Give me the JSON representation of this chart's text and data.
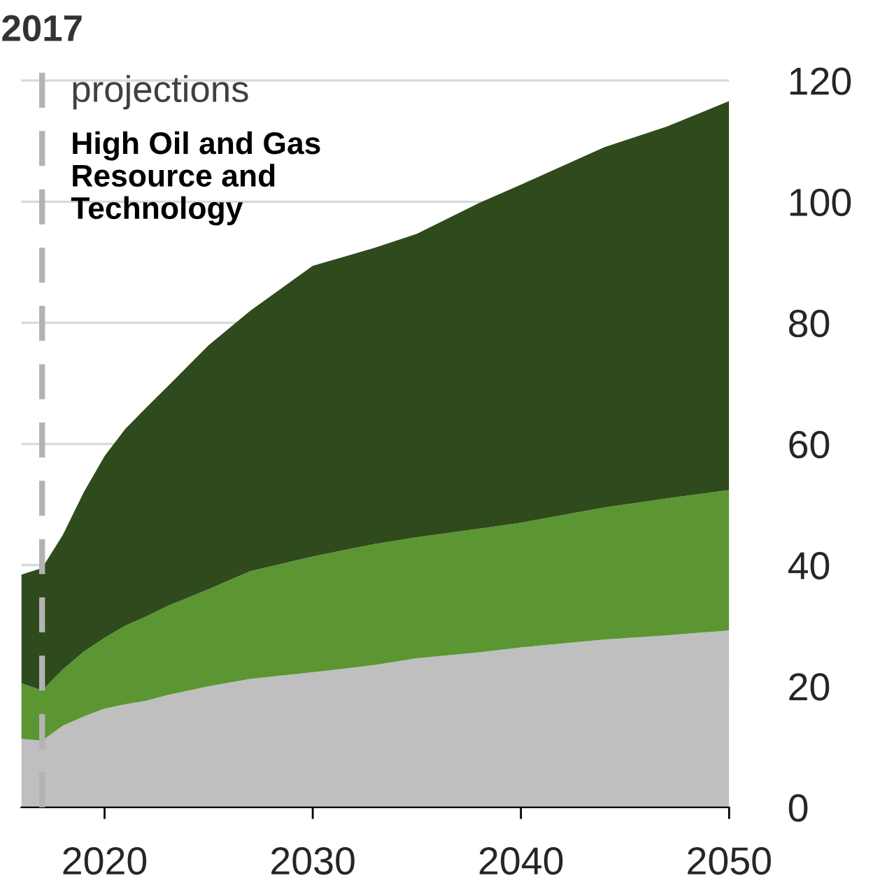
{
  "chart_data": {
    "type": "area",
    "stacked": true,
    "title": "High Oil and Gas\nResource and\nTechnology",
    "annotations": [
      "projections"
    ],
    "x": [
      2016,
      2017,
      2018,
      2019,
      2020,
      2021,
      2022,
      2023,
      2025,
      2027,
      2030,
      2033,
      2035,
      2038,
      2040,
      2044,
      2047,
      2050
    ],
    "series": [
      {
        "color": "#bfbfbf",
        "values": [
          11.3,
          11.0,
          13.5,
          15.0,
          16.3,
          17.0,
          17.6,
          18.5,
          20.0,
          21.2,
          22.3,
          23.5,
          24.6,
          25.6,
          26.4,
          27.7,
          28.4,
          29.2
        ]
      },
      {
        "color": "#5b9632",
        "values": [
          9.2,
          8.3,
          9.3,
          10.7,
          11.7,
          13.0,
          13.9,
          14.7,
          16.0,
          17.8,
          19.1,
          20.0,
          20.0,
          20.4,
          20.6,
          21.8,
          22.6,
          23.2
        ]
      },
      {
        "color": "#2f4a1c",
        "values": [
          17.9,
          20.2,
          22.2,
          26.3,
          30.0,
          32.5,
          34.5,
          36.2,
          40.3,
          43.0,
          48.0,
          48.9,
          50.1,
          53.8,
          55.8,
          59.5,
          61.4,
          64.2
        ]
      }
    ],
    "xlim": [
      2016,
      2050
    ],
    "xticks": [
      2020,
      2030,
      2040,
      2050
    ],
    "ylim": [
      0,
      124
    ],
    "yticks": [
      0,
      20,
      40,
      60,
      80,
      100,
      120
    ],
    "ref_lines": [
      {
        "axis": "x",
        "value": 2017,
        "label": "2017",
        "color": "#b3b3b3",
        "line_style": "dashed"
      }
    ],
    "grid": "y",
    "legend": false
  }
}
